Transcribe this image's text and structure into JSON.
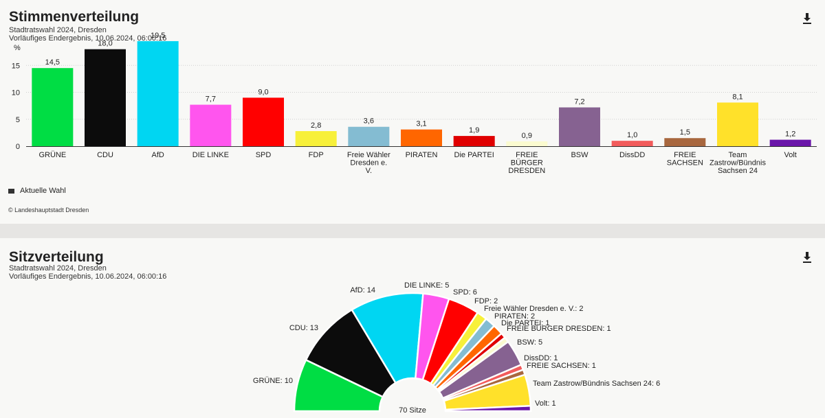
{
  "vote_section": {
    "title": "Stimmenverteilung",
    "subtitle_1": "Stadtratswahl 2024, Dresden",
    "subtitle_2": "Vorläufiges Endergebnis, 10.06.2024, 06:00:16",
    "legend_label": "Aktuelle Wahl",
    "copyright": "© Landeshauptstadt Dresden",
    "download_icon": "download-icon"
  },
  "seat_section": {
    "title": "Sitzverteilung",
    "subtitle_1": "Stadtratswahl 2024, Dresden",
    "subtitle_2": "Vorläufiges Endergebnis, 10.06.2024, 06:00:16",
    "download_icon": "download-icon"
  },
  "chart_data": [
    {
      "type": "bar",
      "ylabel": "%",
      "ylim": [
        0,
        20
      ],
      "yticks": [
        0,
        5,
        10,
        15
      ],
      "grid": true,
      "legend": "bottom-left",
      "categories": [
        [
          "GRÜNE"
        ],
        [
          "CDU"
        ],
        [
          "AfD"
        ],
        [
          "DIE LINKE"
        ],
        [
          "SPD"
        ],
        [
          "FDP"
        ],
        [
          "Freie Wähler",
          "Dresden e.",
          "V."
        ],
        [
          "PIRATEN"
        ],
        [
          "Die PARTEI"
        ],
        [
          "FREIE",
          "BÜRGER",
          "DRESDEN"
        ],
        [
          "BSW"
        ],
        [
          "DissDD"
        ],
        [
          "FREIE",
          "SACHSEN"
        ],
        [
          "Team",
          "Zastrow/Bündnis",
          "Sachsen 24"
        ],
        [
          "Volt"
        ]
      ],
      "values": [
        14.5,
        18.0,
        19.5,
        7.7,
        9.0,
        2.8,
        3.6,
        3.1,
        1.9,
        0.9,
        7.2,
        1.0,
        1.5,
        8.1,
        1.2
      ],
      "value_labels": [
        "14,5",
        "18,0",
        "19,5",
        "7,7",
        "9,0",
        "2,8",
        "3,6",
        "3,1",
        "1,9",
        "0,9",
        "7,2",
        "1,0",
        "1,5",
        "8,1",
        "1,2"
      ],
      "colors": [
        "#00dd44",
        "#0c0c0c",
        "#00d6f2",
        "#ff55ee",
        "#ff0000",
        "#f7f03a",
        "#84bcd2",
        "#ff6600",
        "#e00000",
        "#fbfbd0",
        "#866291",
        "#f25b5b",
        "#a8673e",
        "#ffe12a",
        "#6a16a9"
      ],
      "series": [
        {
          "name": "Aktuelle Wahl",
          "values": [
            14.5,
            18.0,
            19.5,
            7.7,
            9.0,
            2.8,
            3.6,
            3.1,
            1.9,
            0.9,
            7.2,
            1.0,
            1.5,
            8.1,
            1.2
          ]
        }
      ]
    },
    {
      "type": "pie",
      "center_label": "70 Sitze",
      "labels": [
        "GRÜNE",
        "CDU",
        "AfD",
        "DIE LINKE",
        "SPD",
        "FDP",
        "Freie Wähler Dresden e. V.",
        "PIRATEN",
        "Die PARTEI",
        "FREIE BÜRGER DRESDEN",
        "BSW",
        "DissDD",
        "FREIE SACHSEN",
        "Team Zastrow/Bündnis Sachsen 24",
        "Volt"
      ],
      "values": [
        10,
        13,
        14,
        5,
        6,
        2,
        2,
        2,
        1,
        1,
        5,
        1,
        1,
        6,
        1
      ],
      "colors": [
        "#00dd44",
        "#0c0c0c",
        "#00d6f2",
        "#ff55ee",
        "#ff0000",
        "#f7f03a",
        "#84bcd2",
        "#ff6600",
        "#e00000",
        "#fbfbd0",
        "#866291",
        "#f25b5b",
        "#a8673e",
        "#ffe12a",
        "#6a16a9"
      ]
    }
  ]
}
